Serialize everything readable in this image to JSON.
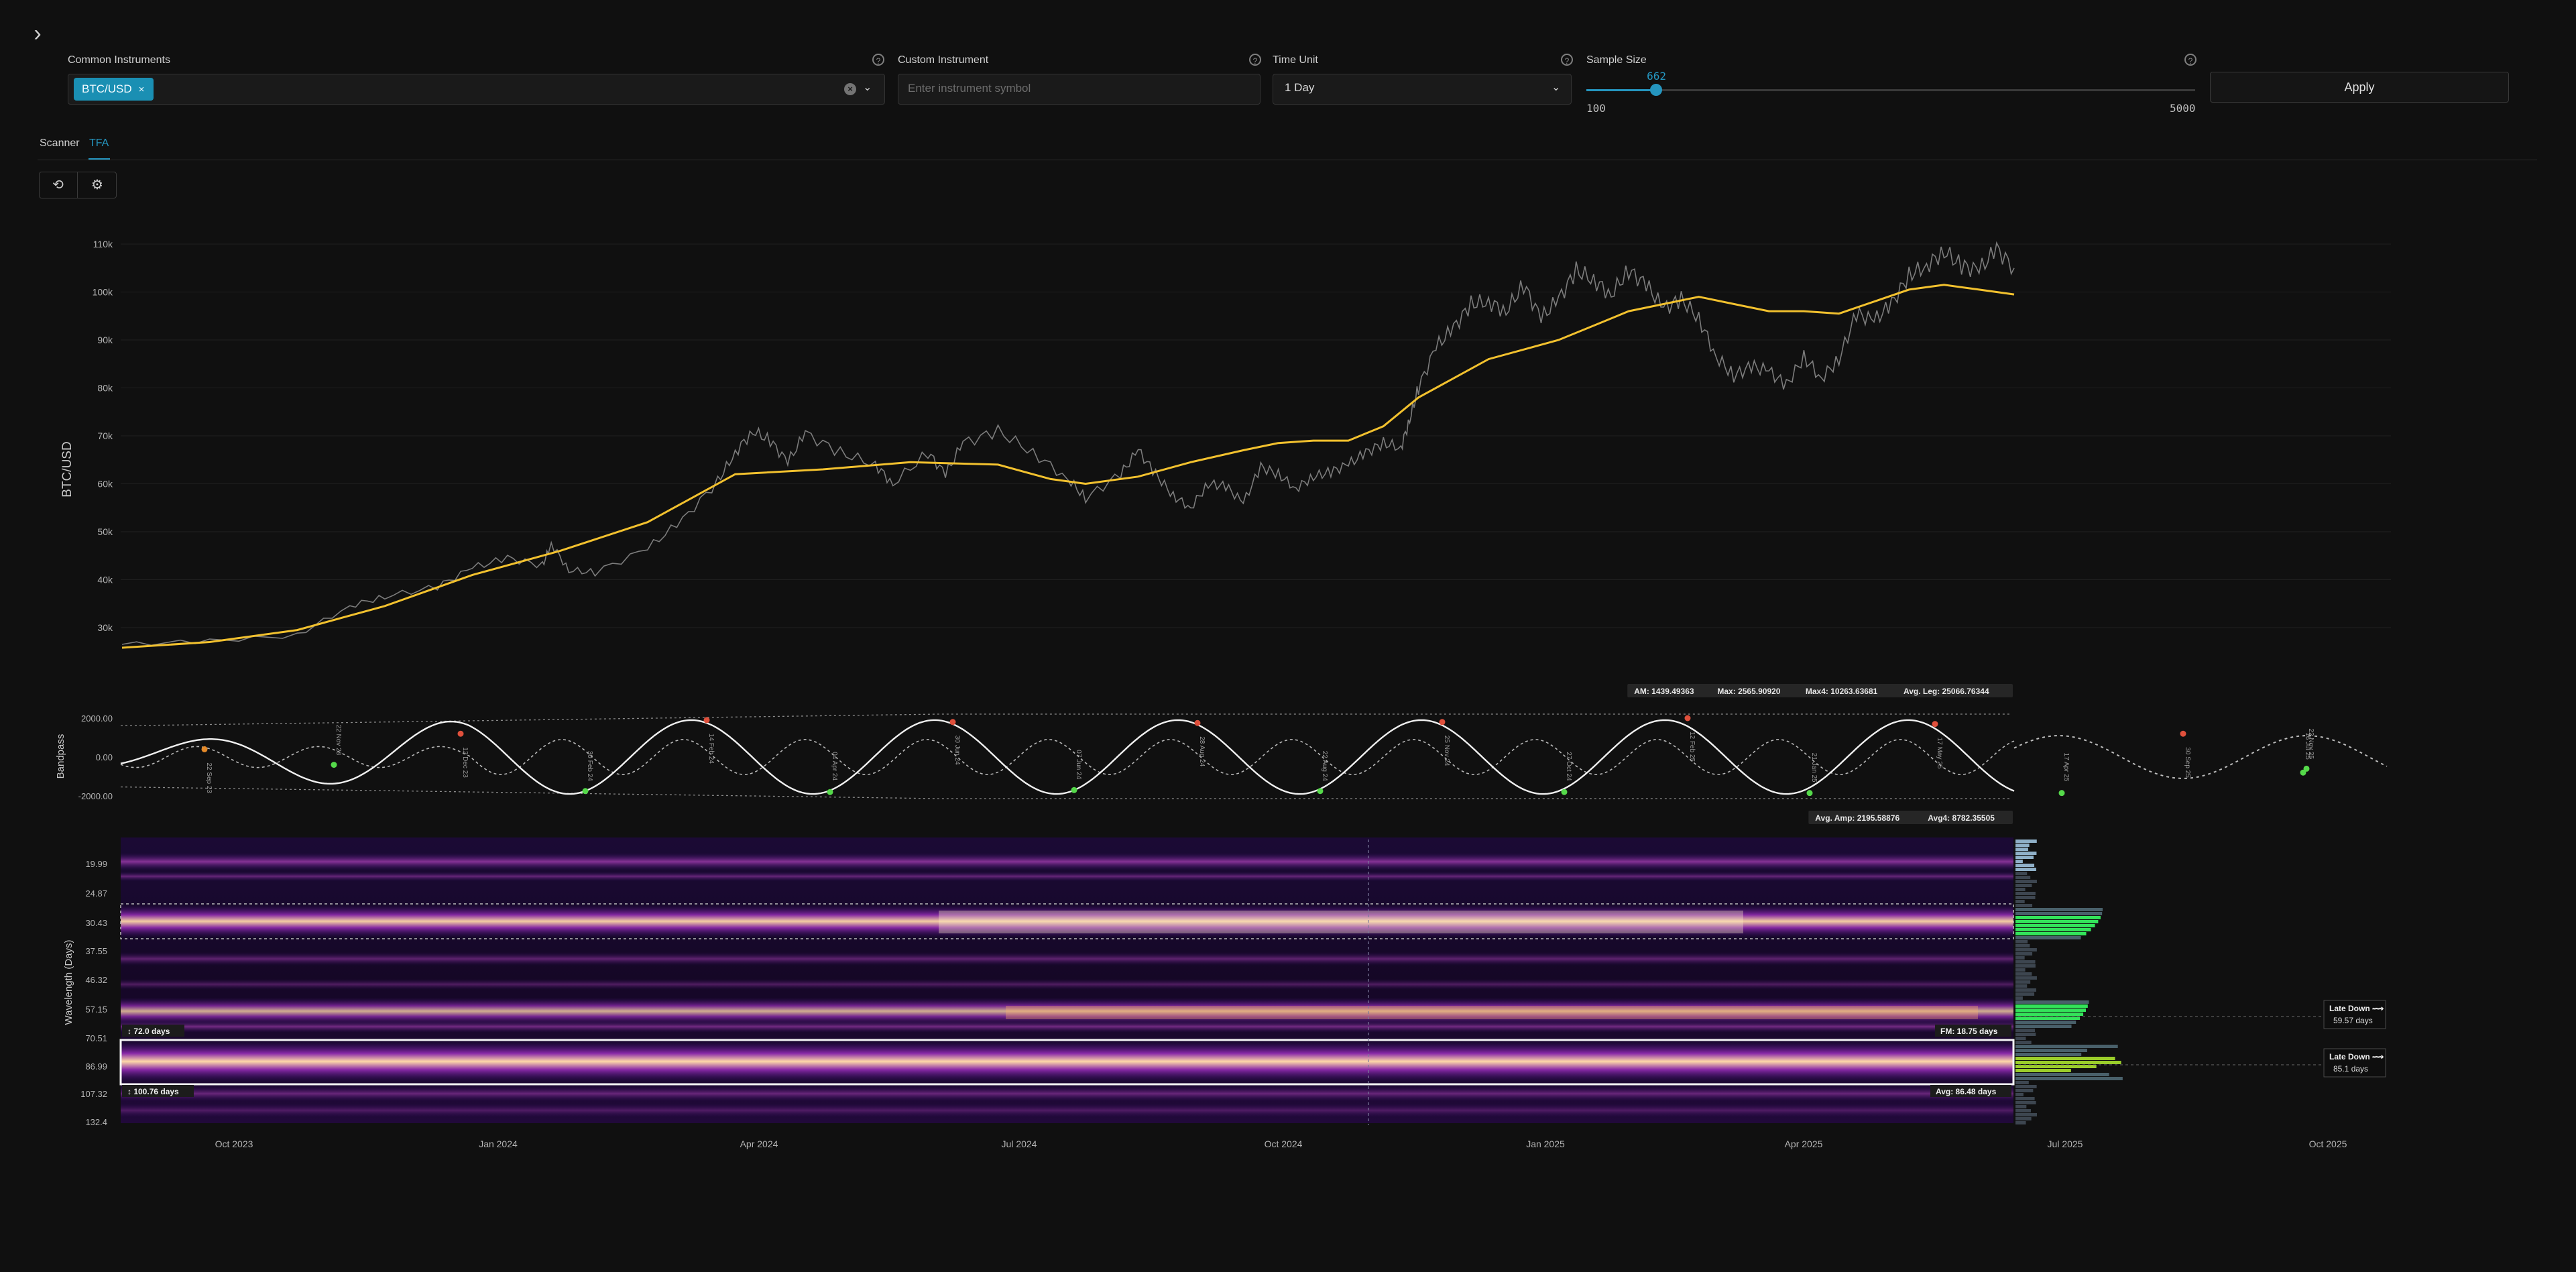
{
  "controls": {
    "expand_icon": "chevron-right-icon",
    "common_instruments": {
      "label": "Common Instruments",
      "chip": "BTC/USD",
      "chip_remove": "×"
    },
    "custom_instrument": {
      "label": "Custom Instrument",
      "placeholder": "Enter instrument symbol"
    },
    "time_unit": {
      "label": "Time Unit",
      "value": "1 Day"
    },
    "sample_size": {
      "label": "Sample Size",
      "value": 662,
      "min": 100,
      "max": 5000,
      "min_label": "100",
      "max_label": "5000",
      "value_label": "662"
    },
    "apply_label": "Apply",
    "help_glyph": "?",
    "accent_color": "#2596c0"
  },
  "tabs": [
    {
      "label": "Scanner",
      "active": false
    },
    {
      "label": "TFA",
      "active": true
    }
  ],
  "toolbar": [
    {
      "icon": "refresh-icon"
    },
    {
      "icon": "settings-icon"
    }
  ],
  "chart_data": [
    {
      "type": "line",
      "ylabel": "BTC/USD",
      "yticks": [
        "110k",
        "100k",
        "90k",
        "80k",
        "70k",
        "60k",
        "50k",
        "40k",
        "30k"
      ],
      "ytick_values": [
        110000,
        100000,
        90000,
        80000,
        70000,
        60000,
        50000,
        40000,
        30000
      ],
      "xticks": [
        "Oct 2023",
        "Jan 2024",
        "Apr 2024",
        "Jul 2024",
        "Oct 2024",
        "Jan 2025",
        "Apr 2025",
        "Jul 2025",
        "Oct 2025"
      ],
      "series": [
        {
          "role": "price",
          "color": "#8a8a8a",
          "points": [
            [
              0,
              26500
            ],
            [
              0.05,
              27200
            ],
            [
              0.1,
              28400
            ],
            [
              0.13,
              34500
            ],
            [
              0.15,
              36500
            ],
            [
              0.18,
              38500
            ],
            [
              0.2,
              42500
            ],
            [
              0.22,
              44500
            ],
            [
              0.24,
              43000
            ],
            [
              0.245,
              47500
            ],
            [
              0.255,
              42000
            ],
            [
              0.27,
              41500
            ],
            [
              0.3,
              46500
            ],
            [
              0.32,
              52500
            ],
            [
              0.34,
              60500
            ],
            [
              0.35,
              66500
            ],
            [
              0.36,
              71000
            ],
            [
              0.37,
              69000
            ],
            [
              0.38,
              64500
            ],
            [
              0.39,
              70500
            ],
            [
              0.41,
              66500
            ],
            [
              0.43,
              64000
            ],
            [
              0.44,
              60000
            ],
            [
              0.46,
              66500
            ],
            [
              0.47,
              62000
            ],
            [
              0.48,
              68500
            ],
            [
              0.5,
              71000
            ],
            [
              0.52,
              66500
            ],
            [
              0.54,
              61000
            ],
            [
              0.55,
              57000
            ],
            [
              0.57,
              62000
            ],
            [
              0.58,
              67000
            ],
            [
              0.59,
              62000
            ],
            [
              0.6,
              57500
            ],
            [
              0.61,
              55000
            ],
            [
              0.62,
              60000
            ],
            [
              0.63,
              59500
            ],
            [
              0.64,
              56000
            ],
            [
              0.65,
              63500
            ],
            [
              0.66,
              62000
            ],
            [
              0.67,
              59000
            ],
            [
              0.68,
              61500
            ],
            [
              0.69,
              62500
            ],
            [
              0.7,
              64000
            ],
            [
              0.71,
              66500
            ],
            [
              0.72,
              68500
            ],
            [
              0.73,
              67500
            ],
            [
              0.735,
              73500
            ],
            [
              0.74,
              80000
            ],
            [
              0.75,
              88500
            ],
            [
              0.76,
              92500
            ],
            [
              0.77,
              97500
            ],
            [
              0.78,
              98000
            ],
            [
              0.79,
              96000
            ],
            [
              0.8,
              101500
            ],
            [
              0.81,
              94500
            ],
            [
              0.82,
              98500
            ],
            [
              0.83,
              104500
            ],
            [
              0.84,
              102500
            ],
            [
              0.85,
              99500
            ],
            [
              0.86,
              104500
            ],
            [
              0.87,
              101500
            ],
            [
              0.88,
              96500
            ],
            [
              0.89,
              98500
            ],
            [
              0.9,
              94500
            ],
            [
              0.91,
              86500
            ],
            [
              0.92,
              82500
            ],
            [
              0.93,
              84500
            ],
            [
              0.94,
              83500
            ],
            [
              0.95,
              80500
            ],
            [
              0.96,
              86500
            ],
            [
              0.97,
              82000
            ],
            [
              0.98,
              86000
            ],
            [
              0.99,
              95500
            ],
            [
              1,
              94000
            ],
            [
              1.01,
              97500
            ],
            [
              1.02,
              103500
            ],
            [
              1.03,
              105500
            ],
            [
              1.04,
              108500
            ],
            [
              1.05,
              105500
            ],
            [
              1.06,
              104500
            ],
            [
              1.07,
              109000
            ],
            [
              1.08,
              105000
            ]
          ]
        },
        {
          "role": "trend",
          "color": "#f2c12e",
          "points": [
            [
              0,
              25800
            ],
            [
              0.05,
              27000
            ],
            [
              0.1,
              29500
            ],
            [
              0.15,
              34500
            ],
            [
              0.2,
              41000
            ],
            [
              0.25,
              46000
            ],
            [
              0.3,
              52000
            ],
            [
              0.33,
              58000
            ],
            [
              0.35,
              62000
            ],
            [
              0.4,
              63000
            ],
            [
              0.45,
              64500
            ],
            [
              0.5,
              64000
            ],
            [
              0.53,
              61000
            ],
            [
              0.55,
              60000
            ],
            [
              0.58,
              61500
            ],
            [
              0.61,
              64500
            ],
            [
              0.64,
              67000
            ],
            [
              0.66,
              68500
            ],
            [
              0.68,
              69000
            ],
            [
              0.7,
              69000
            ],
            [
              0.72,
              72000
            ],
            [
              0.74,
              78000
            ],
            [
              0.76,
              82000
            ],
            [
              0.78,
              86000
            ],
            [
              0.8,
              88000
            ],
            [
              0.82,
              90000
            ],
            [
              0.84,
              93000
            ],
            [
              0.86,
              96000
            ],
            [
              0.88,
              97500
            ],
            [
              0.9,
              99000
            ],
            [
              0.92,
              97500
            ],
            [
              0.94,
              96000
            ],
            [
              0.96,
              96000
            ],
            [
              0.98,
              95500
            ],
            [
              1,
              98000
            ],
            [
              1.02,
              100500
            ],
            [
              1.04,
              101500
            ],
            [
              1.06,
              100500
            ],
            [
              1.08,
              99500
            ]
          ]
        }
      ]
    },
    {
      "type": "line",
      "ylabel": "Bandpass",
      "yticks": [
        "2000.00",
        "0.00",
        "-2000.00"
      ],
      "ytick_values": [
        2000,
        0,
        -2000
      ],
      "cycle_period_days": 72.0,
      "peaks": [
        {
          "label": "22 Sep 23",
          "value": 400,
          "color": "#e58a2a"
        },
        {
          "label": "12 Dec 23",
          "value": 1200,
          "color": "#e0503c"
        },
        {
          "label": "14 Feb 24",
          "value": 1900,
          "color": "#e0503c"
        },
        {
          "label": "30 Jun 24",
          "value": 1800,
          "color": "#e0503c"
        },
        {
          "label": "28 Aug 24",
          "value": 1750,
          "color": "#e0503c"
        },
        {
          "label": "25 Nov 24",
          "value": 1800,
          "color": "#e0503c"
        },
        {
          "label": "12 Feb 25",
          "value": 2000,
          "color": "#e0503c"
        },
        {
          "label": "17 May 25",
          "value": 1700,
          "color": "#e0503c"
        },
        {
          "label": "30 Sep 25",
          "value": 1200,
          "color": "#e0503c"
        }
      ],
      "troughs": [
        {
          "label": "22 Nov 23",
          "value": -400,
          "color": "#55d94a"
        },
        {
          "label": "30 Feb 24",
          "value": -1750,
          "color": "#55d94a"
        },
        {
          "label": "04 Apr 24",
          "value": -1800,
          "color": "#55d94a"
        },
        {
          "label": "07 Jun 24",
          "value": -1700,
          "color": "#55d94a"
        },
        {
          "label": "22 Aug 24",
          "value": -1750,
          "color": "#55d94a"
        },
        {
          "label": "27 Oct 24",
          "value": -1800,
          "color": "#55d94a"
        },
        {
          "label": "21 Jan 25",
          "value": -1850,
          "color": "#55d94a"
        },
        {
          "label": "17 Apr 25",
          "value": -1850,
          "color": "#55d94a"
        },
        {
          "label": "16 Jul 25",
          "value": -800,
          "color": "#55d94a"
        },
        {
          "label": "22 Nov 25",
          "value": -600,
          "color": "#55d94a"
        }
      ],
      "stats_top": [
        {
          "icon": "am-icon",
          "label": "AM:",
          "value": "1439.49363"
        },
        {
          "icon": "max-icon",
          "label": "Max:",
          "value": "2565.90920"
        },
        {
          "icon": "max4-icon",
          "label": "Max4:",
          "value": "10263.63681"
        },
        {
          "icon": "avg-leg-icon",
          "label": "Avg. Leg:",
          "value": "25066.76344"
        }
      ],
      "stats_bottom": [
        {
          "icon": "avg-amp-icon",
          "label": "Avg. Amp:",
          "value": "2195.58876"
        },
        {
          "icon": "avg4-icon",
          "label": "Avg4:",
          "value": "8782.35505"
        }
      ]
    },
    {
      "type": "heatmap",
      "ylabel": "Wavelength (Days)",
      "yticks": [
        "19.99",
        "24.87",
        "30.43",
        "37.55",
        "46.32",
        "57.15",
        "70.51",
        "86.99",
        "107.32",
        "132.4"
      ],
      "band_labels": [
        {
          "text": "72.0 days",
          "role": "upper"
        },
        {
          "text": "100.76 days",
          "role": "lower"
        }
      ],
      "band_stats": [
        {
          "icon": "fm-icon",
          "label": "FM:",
          "value": "18.75 days"
        },
        {
          "icon": "avg-icon",
          "label": "Avg:",
          "value": "86.48 days"
        }
      ],
      "annotations": [
        {
          "title": "Late Down",
          "value": "59.57 days"
        },
        {
          "title": "Late Down",
          "value": "85.1 days"
        }
      ]
    }
  ]
}
